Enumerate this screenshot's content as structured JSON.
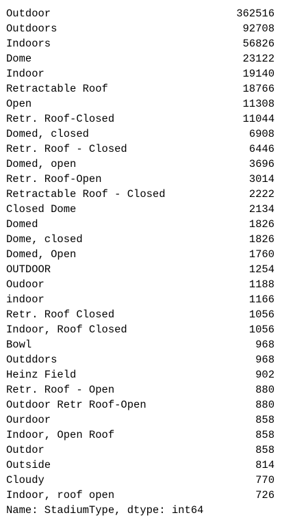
{
  "series": {
    "rows": [
      {
        "label": "Outdoor",
        "value": "362516"
      },
      {
        "label": "Outdoors",
        "value": "92708"
      },
      {
        "label": "Indoors",
        "value": "56826"
      },
      {
        "label": "Dome",
        "value": "23122"
      },
      {
        "label": "Indoor",
        "value": "19140"
      },
      {
        "label": "Retractable Roof",
        "value": "18766"
      },
      {
        "label": "Open",
        "value": "11308"
      },
      {
        "label": "Retr. Roof-Closed",
        "value": "11044"
      },
      {
        "label": "Domed, closed",
        "value": "6908"
      },
      {
        "label": "Retr. Roof - Closed",
        "value": "6446"
      },
      {
        "label": "Domed, open",
        "value": "3696"
      },
      {
        "label": "Retr. Roof-Open",
        "value": "3014"
      },
      {
        "label": "Retractable Roof - Closed",
        "value": "2222"
      },
      {
        "label": "Closed Dome",
        "value": "2134"
      },
      {
        "label": "Domed",
        "value": "1826"
      },
      {
        "label": "Dome, closed",
        "value": "1826"
      },
      {
        "label": "Domed, Open",
        "value": "1760"
      },
      {
        "label": "OUTDOOR",
        "value": "1254"
      },
      {
        "label": "Oudoor",
        "value": "1188"
      },
      {
        "label": "indoor",
        "value": "1166"
      },
      {
        "label": "Retr. Roof Closed",
        "value": "1056"
      },
      {
        "label": "Indoor, Roof Closed",
        "value": "1056"
      },
      {
        "label": "Bowl",
        "value": "968"
      },
      {
        "label": "Outddors",
        "value": "968"
      },
      {
        "label": "Heinz Field",
        "value": "902"
      },
      {
        "label": "Retr. Roof - Open",
        "value": "880"
      },
      {
        "label": "Outdoor Retr Roof-Open",
        "value": "880"
      },
      {
        "label": "Ourdoor",
        "value": "858"
      },
      {
        "label": "Indoor, Open Roof",
        "value": "858"
      },
      {
        "label": "Outdor",
        "value": "858"
      },
      {
        "label": "Outside",
        "value": "814"
      },
      {
        "label": "Cloudy",
        "value": "770"
      },
      {
        "label": "Indoor, roof open",
        "value": "726"
      }
    ],
    "footer": "Name: StadiumType, dtype: int64"
  }
}
